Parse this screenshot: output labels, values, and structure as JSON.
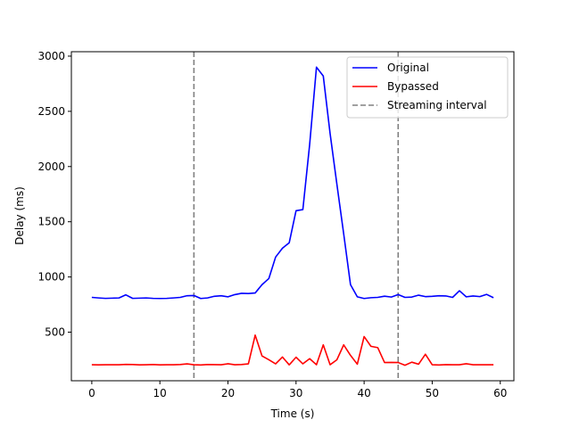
{
  "chart_data": {
    "type": "line",
    "title": "",
    "xlabel": "Time (s)",
    "ylabel": "Delay (ms)",
    "xlim": [
      -3,
      62
    ],
    "ylim": [
      60,
      3040
    ],
    "xticks": [
      0,
      10,
      20,
      30,
      40,
      50,
      60
    ],
    "yticks": [
      500,
      1000,
      1500,
      2000,
      2500,
      3000
    ],
    "grid": false,
    "legend_position": "top-right",
    "series": [
      {
        "name": "Original",
        "color": "#0000ff",
        "style": "solid",
        "x": [
          0,
          1,
          2,
          3,
          4,
          5,
          6,
          7,
          8,
          9,
          10,
          11,
          12,
          13,
          14,
          15,
          16,
          17,
          18,
          19,
          20,
          21,
          22,
          23,
          24,
          25,
          26,
          27,
          28,
          29,
          30,
          31,
          32,
          33,
          34,
          35,
          36,
          37,
          38,
          39,
          40,
          41,
          42,
          43,
          44,
          45,
          46,
          47,
          48,
          49,
          50,
          51,
          52,
          53,
          54,
          55,
          56,
          57,
          58,
          59
        ],
        "y": [
          815,
          810,
          806,
          808,
          810,
          838,
          806,
          808,
          810,
          806,
          805,
          806,
          810,
          815,
          830,
          832,
          805,
          810,
          825,
          830,
          820,
          840,
          852,
          850,
          855,
          930,
          985,
          1180,
          1260,
          1310,
          1600,
          1610,
          2200,
          2900,
          2820,
          2300,
          1840,
          1390,
          930,
          820,
          805,
          812,
          815,
          826,
          818,
          840,
          815,
          818,
          835,
          822,
          825,
          830,
          828,
          815,
          875,
          820,
          828,
          822,
          842,
          812
        ]
      },
      {
        "name": "Bypassed",
        "color": "#ff0000",
        "style": "solid",
        "x": [
          0,
          1,
          2,
          3,
          4,
          5,
          6,
          7,
          8,
          9,
          10,
          11,
          12,
          13,
          14,
          15,
          16,
          17,
          18,
          19,
          20,
          21,
          22,
          23,
          24,
          25,
          26,
          27,
          28,
          29,
          30,
          31,
          32,
          33,
          34,
          35,
          36,
          37,
          38,
          39,
          40,
          41,
          42,
          43,
          44,
          45,
          46,
          47,
          48,
          49,
          50,
          51,
          52,
          53,
          54,
          55,
          56,
          57,
          58,
          59
        ],
        "y": [
          205,
          204,
          205,
          205,
          205,
          208,
          207,
          204,
          205,
          207,
          204,
          205,
          205,
          207,
          213,
          205,
          203,
          207,
          206,
          205,
          214,
          205,
          207,
          213,
          473,
          285,
          250,
          213,
          275,
          204,
          273,
          213,
          260,
          205,
          385,
          205,
          250,
          385,
          290,
          210,
          460,
          372,
          360,
          225,
          226,
          225,
          200,
          228,
          210,
          300,
          205,
          203,
          206,
          205,
          205,
          214,
          205,
          205,
          205,
          205
        ]
      }
    ],
    "vlines": [
      {
        "name": "Streaming interval",
        "color": "#808080",
        "style": "dashed",
        "x": [
          15,
          45
        ]
      }
    ],
    "legend": [
      "Original",
      "Bypassed",
      "Streaming interval"
    ]
  }
}
